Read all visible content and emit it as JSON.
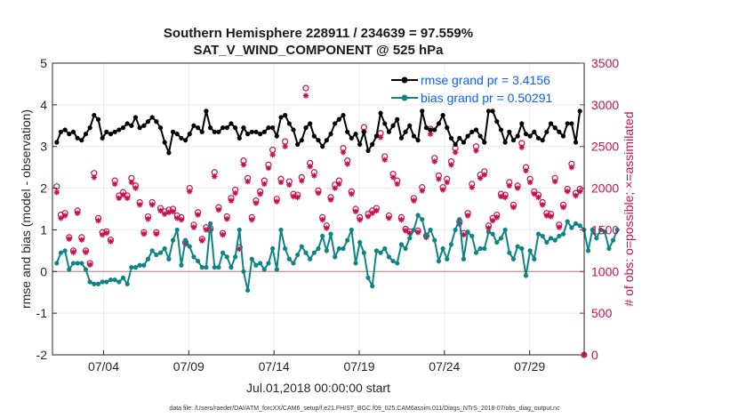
{
  "chart_data": {
    "type": "line",
    "title": "Southern Hemisphere 228911 / 234639 = 97.559%",
    "subtitle": "SAT_V_WIND_COMPONENT @ 525 hPa",
    "xlabel": "Jul.01,2018 00:00:00 start",
    "ylabel": "rmse and bias (model - observation)",
    "y2label": "# of obs: o=possible; ×=assimilated",
    "xlim": [
      1,
      32.2
    ],
    "ylim": [
      -2,
      5
    ],
    "y2lim": [
      0,
      3500
    ],
    "xticks": [
      {
        "pos": 4,
        "label": "07/04"
      },
      {
        "pos": 9,
        "label": "07/09"
      },
      {
        "pos": 14,
        "label": "07/14"
      },
      {
        "pos": 19,
        "label": "07/19"
      },
      {
        "pos": 24,
        "label": "07/24"
      },
      {
        "pos": 29,
        "label": "07/29"
      }
    ],
    "yticks": [
      -2,
      -1,
      0,
      1,
      2,
      3,
      4,
      5
    ],
    "y2ticks": [
      0,
      500,
      1000,
      1500,
      2000,
      2500,
      3000,
      3500
    ],
    "footnote": "data file: /Users/raeder/DAI/ATM_forcXX/CAM6_setup/f.e21.FHIST_BGC.f09_025.CAM6assim.011/Diags_NTrS_2018-07/obs_diag_output.nc",
    "colors": {
      "rmse": "#000000",
      "bias": "#0e8585",
      "obs": "#c8104d",
      "zero": "#b08080"
    },
    "series": [
      {
        "name": "rmse grand pr = 3.4156",
        "values": [
          3.1,
          3.35,
          3.4,
          3.3,
          3.35,
          3.2,
          3.15,
          3.3,
          3.45,
          3.75,
          3.65,
          3.2,
          3.35,
          3.3,
          3.35,
          3.4,
          3.45,
          3.55,
          3.5,
          3.7,
          3.45,
          3.5,
          3.6,
          3.7,
          3.6,
          3.45,
          3.1,
          2.85,
          3.35,
          3.3,
          3.2,
          3.15,
          3.3,
          3.5,
          3.45,
          3.35,
          3.85,
          3.45,
          3.35,
          3.35,
          3.45,
          3.45,
          3.55,
          3.45,
          3.2,
          3.45,
          3.3,
          3.35,
          3.35,
          3.3,
          3.35,
          3.45,
          3.45,
          3.25,
          3.7,
          3.75,
          3.55,
          3.4,
          3.05,
          3.15,
          3.45,
          3.55,
          3.25,
          3.15,
          3.0,
          3.15,
          3.3,
          3.55,
          3.65,
          3.75,
          3.35,
          3.2,
          3.3,
          3.05,
          3.35,
          2.9,
          3.05,
          3.25,
          3.8,
          3.55,
          3.35,
          3.5,
          3.65,
          3.2,
          3.35,
          3.5,
          3.25,
          3.15,
          3.85,
          3.45,
          3.4,
          3.4,
          3.55,
          3.75,
          3.45,
          3.2,
          3.05,
          3.2,
          3.1,
          3.25,
          3.35,
          3.4,
          3.25,
          3.1,
          3.85,
          3.85,
          3.6,
          3.4,
          3.1,
          3.35,
          3.15,
          3.25,
          3.55,
          3.3,
          3.25,
          3.35,
          3.2,
          3.15,
          3.35,
          3.55,
          3.45,
          3.35,
          3.25,
          3.55,
          3.55,
          3.1,
          3.85
        ]
      },
      {
        "name": "bias grand pr = 0.50291",
        "values": [
          0.2,
          0.45,
          0.5,
          0.05,
          0.2,
          0.2,
          0.2,
          0.05,
          -0.25,
          -0.3,
          -0.3,
          -0.25,
          -0.25,
          -0.2,
          -0.2,
          -0.25,
          -0.15,
          -0.3,
          0.1,
          0.1,
          0.15,
          0.15,
          0.3,
          0.5,
          0.4,
          0.45,
          0.55,
          0.3,
          0.75,
          1.0,
          0.15,
          0.75,
          0.6,
          0.35,
          0.25,
          0.1,
          0.1,
          1.15,
          0.1,
          0.1,
          0.45,
          0.35,
          0.1,
          0.35,
          1.0,
          0.0,
          -0.45,
          0.3,
          0.15,
          0.2,
          0.05,
          0.2,
          0.55,
          0.05,
          1.0,
          0.55,
          0.3,
          0.2,
          0.4,
          0.6,
          0.45,
          0.3,
          0.45,
          0.55,
          0.85,
          0.5,
          0.9,
          0.35,
          0.55,
          0.55,
          0.75,
          1.0,
          0.2,
          0.7,
          0.45,
          -0.15,
          -0.35,
          0.5,
          0.45,
          0.55,
          0.35,
          0.25,
          0.2,
          0.65,
          0.55,
          0.8,
          1.0,
          1.35,
          1.25,
          0.85,
          1.0,
          0.75,
          0.25,
          0.55,
          0.3,
          0.65,
          1.0,
          1.25,
          0.3,
          0.95,
          0.85,
          0.45,
          0.55,
          0.55,
          0.95,
          0.9,
          0.7,
          0.8,
          1.0,
          0.45,
          0.3,
          0.6,
          0.55,
          -0.1,
          0.5,
          0.3,
          0.9,
          0.85,
          0.7,
          0.8,
          0.75,
          0.85,
          0.9,
          1.2,
          1.05,
          1.15,
          1.1,
          1.0,
          0.5,
          1.0,
          0.8,
          1.0,
          0.95,
          0.55,
          0.75,
          1.0
        ]
      },
      {
        "name": "possible obs",
        "values": [
          2020,
          1680,
          1700,
          1410,
          1250,
          1730,
          1410,
          1250,
          1100,
          2180,
          1640,
          1470,
          1480,
          1380,
          2090,
          1910,
          1950,
          1910,
          2120,
          2030,
          1830,
          1470,
          1660,
          1830,
          1470,
          1760,
          1720,
          1740,
          1750,
          1670,
          1650,
          1350,
          2000,
          1560,
          1710,
          1390,
          1530,
          1520,
          2190,
          1770,
          1460,
          1660,
          1880,
          1980,
          1290,
          2330,
          2120,
          1650,
          1850,
          1960,
          2090,
          2280,
          2460,
          1870,
          2110,
          2560,
          2080,
          1930,
          1920,
          2130,
          3200,
          2300,
          2190,
          1970,
          1650,
          1550,
          1890,
          2040,
          2090,
          2480,
          2330,
          1960,
          1750,
          1650,
          2730,
          1690,
          1730,
          1760,
          2660,
          2380,
          1670,
          2170,
          2090,
          1650,
          1510,
          1480,
          1880,
          1490,
          2010,
          1430,
          2710,
          2360,
          2150,
          2010,
          2110,
          2320,
          2480,
          1600,
          1460,
          1700,
          2050,
          2500,
          2160,
          2200,
          1550,
          1640,
          1680,
          1930,
          1920,
          2070,
          1800,
          2030,
          2540,
          2250,
          2110,
          1960,
          1920,
          1830,
          1700,
          1690,
          2120,
          1560,
          1800,
          1990,
          2290,
          1940,
          1990,
          0
        ]
      },
      {
        "name": "assimilated obs",
        "values": [
          1950,
          1640,
          1670,
          1390,
          1230,
          1700,
          1380,
          1230,
          1080,
          2130,
          1610,
          1440,
          1460,
          1360,
          2050,
          1880,
          1920,
          1880,
          2070,
          2000,
          1800,
          1450,
          1630,
          1800,
          1450,
          1730,
          1690,
          1710,
          1720,
          1640,
          1620,
          1330,
          1960,
          1530,
          1680,
          1370,
          1500,
          1490,
          2140,
          1740,
          1440,
          1630,
          1850,
          1940,
          1270,
          2280,
          2080,
          1620,
          1820,
          1930,
          2050,
          2240,
          2400,
          1840,
          2070,
          2500,
          2040,
          1900,
          1890,
          2090,
          3110,
          2260,
          2150,
          1940,
          1620,
          1520,
          1860,
          2000,
          2050,
          2430,
          2290,
          1930,
          1720,
          1620,
          2680,
          1660,
          1700,
          1730,
          2610,
          2340,
          1640,
          2130,
          2050,
          1620,
          1490,
          1460,
          1850,
          1470,
          1970,
          1410,
          2650,
          2320,
          2110,
          1980,
          2070,
          2280,
          2430,
          1570,
          1440,
          1670,
          2010,
          2450,
          2120,
          2160,
          1520,
          1610,
          1650,
          1900,
          1890,
          2030,
          1770,
          2000,
          2490,
          2210,
          2070,
          1930,
          1890,
          1800,
          1670,
          1660,
          2080,
          1530,
          1770,
          1960,
          2250,
          1910,
          1960,
          0
        ]
      }
    ]
  }
}
